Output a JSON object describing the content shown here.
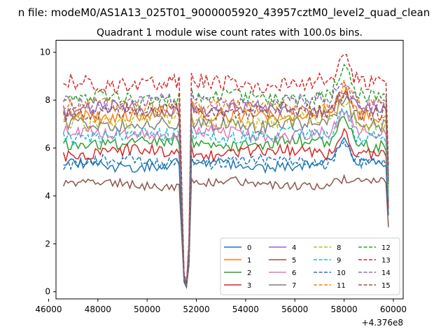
{
  "chart_data": {
    "type": "line",
    "suptitle": "n file: modeM0/AS1A13_025T01_9000005920_43957cztM0_level2_quad_clean",
    "title": "Quadrant 1 module wise count rates with 100.0s bins.",
    "xlabel": "",
    "ylabel": "",
    "x_offset_label": "+4.376e8",
    "xlim": [
      46300,
      60400
    ],
    "ylim": [
      -0.3,
      10.5
    ],
    "x_ticks": [
      46000,
      48000,
      50000,
      52000,
      54000,
      56000,
      58000,
      60000
    ],
    "x_tick_labels": [
      "46000",
      "48000",
      "50000",
      "52000",
      "54000",
      "56000",
      "58000",
      "60000"
    ],
    "y_ticks": [
      0,
      2,
      4,
      6,
      8,
      10
    ],
    "y_tick_labels": [
      "0",
      "2",
      "4",
      "6",
      "8",
      "10"
    ],
    "x_start": 46600,
    "x_end": 59800,
    "x_step": 100,
    "grid": false,
    "legend_position": "lower-right",
    "legend_columns": 4,
    "dip_x": [
      51400,
      51500,
      51600,
      51700,
      51800
    ],
    "dip_scale": [
      0.55,
      0.09,
      0.04,
      0.25,
      1.05
    ],
    "bump_center": 58000,
    "series": [
      {
        "name": "0",
        "level": 5.3,
        "noise": 0.22,
        "bump": 1.0,
        "color": "#1f77b4",
        "dash": "solid"
      },
      {
        "name": "1",
        "level": 7.4,
        "noise": 0.3,
        "bump": 1.0,
        "color": "#ff7f0e",
        "dash": "solid"
      },
      {
        "name": "2",
        "level": 6.2,
        "noise": 0.25,
        "bump": 1.2,
        "color": "#2ca02c",
        "dash": "solid"
      },
      {
        "name": "3",
        "level": 5.8,
        "noise": 0.25,
        "bump": 1.0,
        "color": "#d62728",
        "dash": "solid"
      },
      {
        "name": "4",
        "level": 7.6,
        "noise": 0.28,
        "bump": 1.0,
        "color": "#9467bd",
        "dash": "solid"
      },
      {
        "name": "5",
        "level": 4.5,
        "noise": 0.18,
        "bump": 0.2,
        "color": "#8c564b",
        "dash": "solid"
      },
      {
        "name": "6",
        "level": 6.6,
        "noise": 0.28,
        "bump": 1.0,
        "color": "#e377c2",
        "dash": "solid"
      },
      {
        "name": "7",
        "level": 7.0,
        "noise": 0.3,
        "bump": 1.0,
        "color": "#7f7f7f",
        "dash": "solid"
      },
      {
        "name": "8",
        "level": 7.1,
        "noise": 0.28,
        "bump": 1.0,
        "color": "#bcbd22",
        "dash": "dashed"
      },
      {
        "name": "9",
        "level": 6.5,
        "noise": 0.28,
        "bump": 1.2,
        "color": "#17becf",
        "dash": "dashed"
      },
      {
        "name": "10",
        "level": 5.4,
        "noise": 0.25,
        "bump": 1.0,
        "color": "#1f77b4",
        "dash": "dashed"
      },
      {
        "name": "11",
        "level": 7.7,
        "noise": 0.3,
        "bump": 1.0,
        "color": "#ff7f0e",
        "dash": "dashed"
      },
      {
        "name": "12",
        "level": 8.1,
        "noise": 0.3,
        "bump": 1.4,
        "color": "#2ca02c",
        "dash": "dashed"
      },
      {
        "name": "13",
        "level": 8.7,
        "noise": 0.32,
        "bump": 1.0,
        "color": "#d62728",
        "dash": "dashed"
      },
      {
        "name": "14",
        "level": 7.9,
        "noise": 0.3,
        "bump": 1.0,
        "color": "#9467bd",
        "dash": "dashed"
      },
      {
        "name": "15",
        "level": 7.5,
        "noise": 0.3,
        "bump": 1.0,
        "color": "#8c564b",
        "dash": "dashed"
      }
    ]
  }
}
